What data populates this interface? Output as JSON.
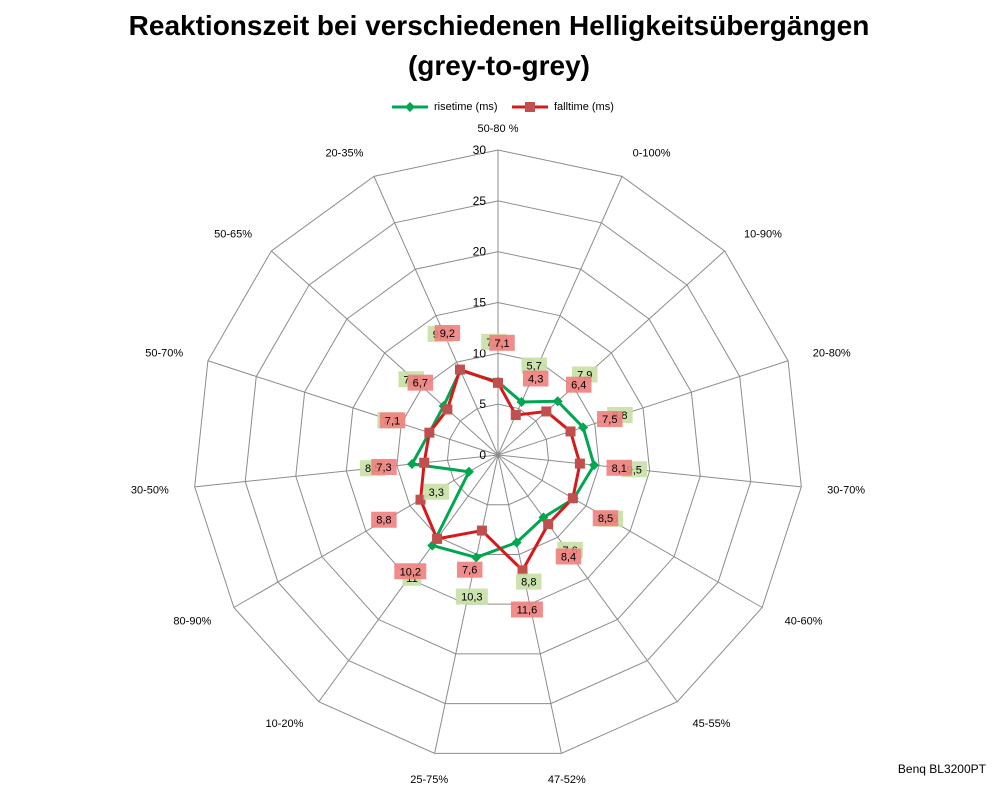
{
  "title_line1": "Reaktionszeit bei verschiedenen Helligkeitsübergängen",
  "title_line2": "(grey-to-grey)",
  "source_label": "Benq BL3200PT",
  "chart_data": {
    "type": "radar",
    "categories": [
      "50-80 %",
      "0-100%",
      "10-90%",
      "20-80%",
      "30-70%",
      "40-60%",
      "45-55%",
      "47-52%",
      "25-75%",
      "10-20%",
      "80-90%",
      "30-50%",
      "50-70%",
      "50-65%",
      "20-35%"
    ],
    "rmax": 30,
    "ticks": [
      0,
      5,
      10,
      15,
      20,
      25,
      30
    ],
    "grid": true,
    "legend_position": "top",
    "series": [
      {
        "name": "risetime (ms)",
        "color": "#00A650",
        "marker": "diamond",
        "label_bg": "#C6E0A4",
        "values": [
          7.2,
          5.7,
          7.9,
          8.8,
          9.5,
          8.6,
          7.6,
          8.8,
          10.3,
          11,
          3.3,
          8.5,
          7.1,
          7.2,
          9.1
        ],
        "labels": [
          "7,2",
          "5,7",
          "7,9",
          "8,8",
          "9,5",
          "8,6",
          "7,6",
          "8,8",
          "10,3",
          "11",
          "3,3",
          "8,5",
          "7,1",
          "7,2",
          "9,1"
        ]
      },
      {
        "name": "falltime (ms)",
        "color": "#D7191C",
        "marker": "square",
        "label_bg": "#F08080",
        "values": [
          7.1,
          4.3,
          6.4,
          7.5,
          8.1,
          8.5,
          8.4,
          11.6,
          7.6,
          10.2,
          8.8,
          7.3,
          7.1,
          6.7,
          9.2
        ],
        "labels": [
          "7,1",
          "4,3",
          "6,4",
          "7,5",
          "8,1",
          "8,5",
          "8,4",
          "11,6",
          "7,6",
          "10,2",
          "8,8",
          "7,3",
          "7,1",
          "6,7",
          "9,2"
        ]
      }
    ]
  }
}
